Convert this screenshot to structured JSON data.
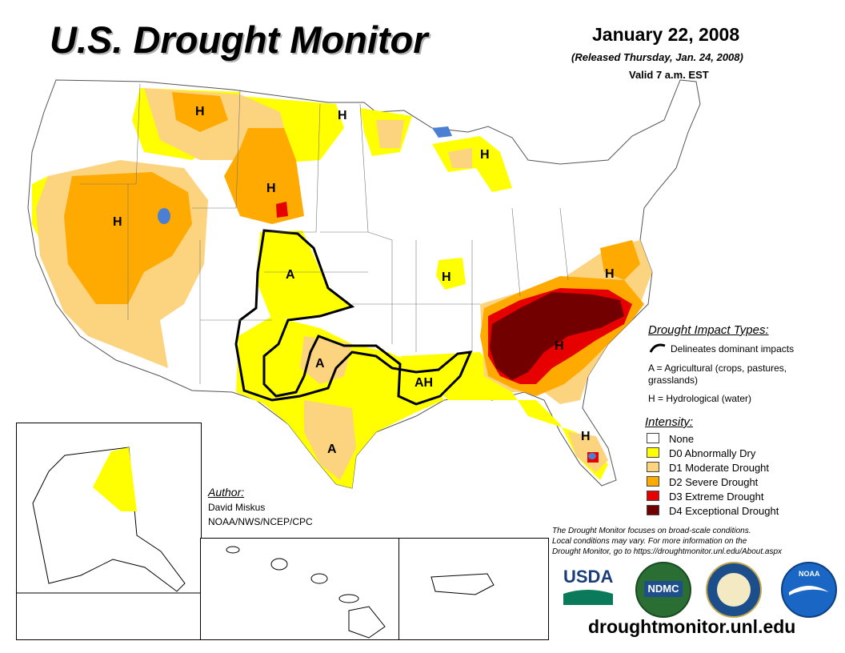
{
  "header": {
    "title": "U.S. Drought Monitor",
    "date": "January 22, 2008",
    "released": "(Released Thursday, Jan. 24, 2008)",
    "valid": "Valid 7 a.m. EST"
  },
  "map_labels": {
    "montana_h": "H",
    "north_dakota_h": "H",
    "michigan_h": "H",
    "wyoming_h": "H",
    "nevada_h": "H",
    "kansas_a": "A",
    "illinois_h": "H",
    "virginia_h": "H",
    "texas_panhandle_a": "A",
    "arkansas_ah": "AH",
    "carolinas_h": "H",
    "south_texas_a": "A",
    "florida_h": "H"
  },
  "impact_legend": {
    "title": "Drought Impact Types:",
    "delineates": "Delineates dominant impacts",
    "agricultural_line1": "A = Agricultural (crops, pastures,",
    "agricultural_line2": "grasslands)",
    "hydrological": "H = Hydrological (water)"
  },
  "intensity_legend": {
    "title": "Intensity:",
    "items": [
      {
        "label": "None",
        "color": "#ffffff"
      },
      {
        "label": "D0 Abnormally Dry",
        "color": "#ffff00"
      },
      {
        "label": "D1 Moderate Drought",
        "color": "#fcd37f"
      },
      {
        "label": "D2 Severe Drought",
        "color": "#ffaa00"
      },
      {
        "label": "D3 Extreme Drought",
        "color": "#e60000"
      },
      {
        "label": "D4 Exceptional Drought",
        "color": "#730000"
      }
    ]
  },
  "author": {
    "label": "Author:",
    "name": "David Miskus",
    "org": "NOAA/NWS/NCEP/CPC"
  },
  "disclaimer": {
    "line1": "The Drought Monitor focuses on broad-scale conditions.",
    "line2": "Local conditions may vary. For more information on the",
    "line3": "Drought Monitor, go to https://droughtmonitor.unl.edu/About.aspx"
  },
  "logos": {
    "usda": "USDA",
    "ndmc": "NDMC",
    "noaa": "NOAA"
  },
  "footer": {
    "website": "droughtmonitor.unl.edu"
  },
  "colors": {
    "d0": "#ffff00",
    "d1": "#fcd37f",
    "d2": "#ffaa00",
    "d3": "#e60000",
    "d4": "#730000",
    "water": "#4a7fd4"
  }
}
